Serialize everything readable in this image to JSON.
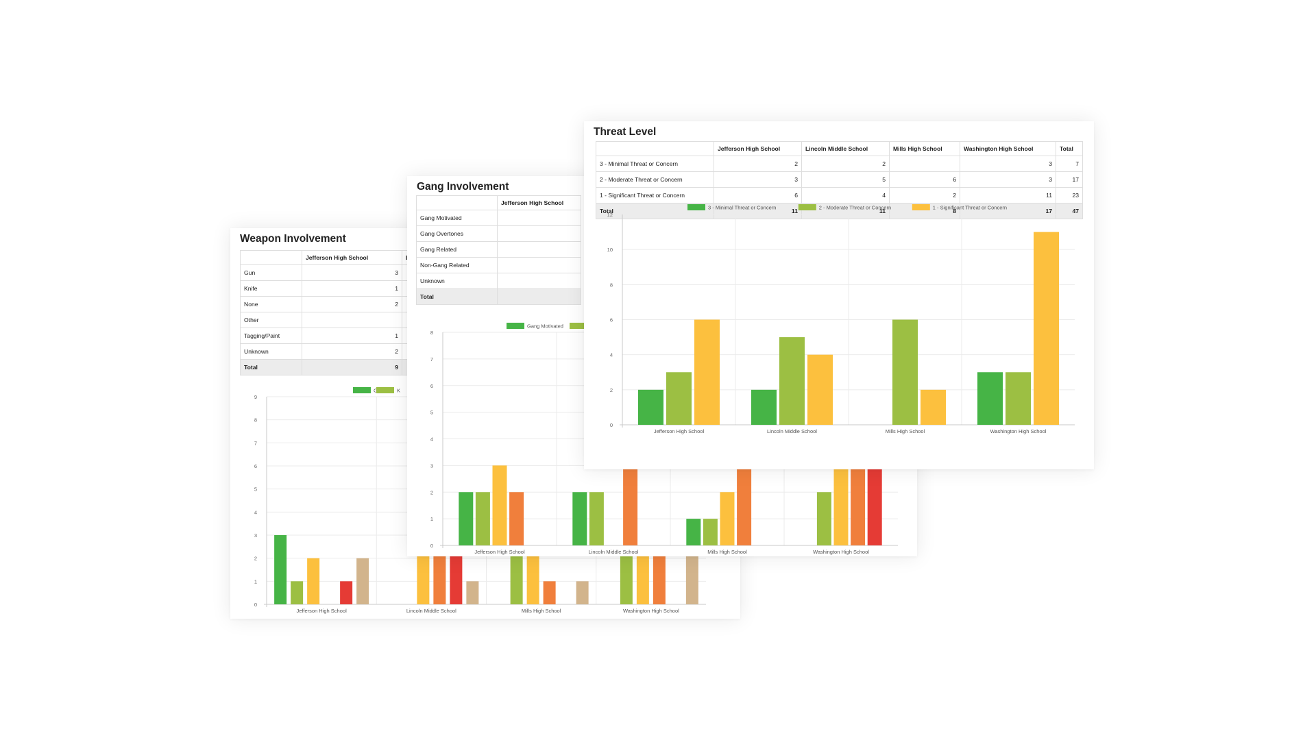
{
  "colors": {
    "green": "#46b446",
    "lightgreen": "#9cbf43",
    "yellow": "#fcc03e",
    "orange": "#f07f3c",
    "red": "#e53b35",
    "tan": "#d2b48c"
  },
  "weapon": {
    "title": "Weapon Involvement",
    "columns": [
      "",
      "Jefferson High School",
      "L"
    ],
    "rows": [
      {
        "label": "Gun",
        "cells": [
          "3",
          ""
        ]
      },
      {
        "label": "Knife",
        "cells": [
          "1",
          ""
        ]
      },
      {
        "label": "None",
        "cells": [
          "2",
          ""
        ]
      },
      {
        "label": "Other",
        "cells": [
          "",
          ""
        ]
      },
      {
        "label": "Tagging/Paint",
        "cells": [
          "1",
          ""
        ]
      },
      {
        "label": "Unknown",
        "cells": [
          "2",
          ""
        ]
      },
      {
        "label": "Total",
        "cells": [
          "9",
          ""
        ],
        "total": true
      }
    ]
  },
  "gang": {
    "title": "Gang Involvement",
    "columns": [
      "",
      "Jefferson High School"
    ],
    "rows": [
      {
        "label": "Gang Motivated",
        "cells": [
          ""
        ]
      },
      {
        "label": "Gang Overtones",
        "cells": [
          ""
        ]
      },
      {
        "label": "Gang Related",
        "cells": [
          ""
        ]
      },
      {
        "label": "Non-Gang Related",
        "cells": [
          ""
        ]
      },
      {
        "label": "Unknown",
        "cells": [
          ""
        ]
      },
      {
        "label": "Total",
        "cells": [
          ""
        ],
        "total": true
      }
    ]
  },
  "threat": {
    "title": "Threat Level",
    "columns": [
      "",
      "Jefferson High School",
      "Lincoln Middle School",
      "Mills High School",
      "Washington High School",
      "Total"
    ],
    "rows": [
      {
        "label": "3 - Minimal Threat or Concern",
        "cells": [
          "2",
          "2",
          "",
          "3",
          "7"
        ]
      },
      {
        "label": "2 - Moderate Threat or Concern",
        "cells": [
          "3",
          "5",
          "6",
          "3",
          "17"
        ]
      },
      {
        "label": "1 - Significant Threat or Concern",
        "cells": [
          "6",
          "4",
          "2",
          "11",
          "23"
        ]
      },
      {
        "label": "Total",
        "cells": [
          "11",
          "11",
          "8",
          "17",
          "47"
        ],
        "total": true
      }
    ]
  },
  "chart_data": [
    {
      "id": "weapon",
      "type": "bar",
      "title": "Weapon Involvement",
      "categories": [
        "Jefferson High School",
        "Lincoln Middle School",
        "Mills High School",
        "Washington High School"
      ],
      "series": [
        {
          "name": "Gun",
          "color": "green",
          "values": [
            3,
            0,
            0,
            0
          ]
        },
        {
          "name": "Knife",
          "color": "lightgreen",
          "values": [
            1,
            0,
            3,
            3
          ]
        },
        {
          "name": "None",
          "color": "yellow",
          "values": [
            2,
            3,
            3,
            3
          ]
        },
        {
          "name": "Other",
          "color": "orange",
          "values": [
            0,
            3,
            1,
            3
          ]
        },
        {
          "name": "Tagging/Paint",
          "color": "red",
          "values": [
            1,
            3,
            0,
            0
          ]
        },
        {
          "name": "Unknown",
          "color": "tan",
          "values": [
            2,
            1,
            1,
            3
          ]
        }
      ],
      "legend": [
        "Gun",
        "K"
      ],
      "ylim": [
        0,
        9
      ],
      "yticks": [
        0,
        1,
        2,
        3,
        4,
        5,
        6,
        7,
        8,
        9
      ]
    },
    {
      "id": "gang",
      "type": "bar",
      "title": "Gang Involvement",
      "categories": [
        "Jefferson High School",
        "Lincoln Middle School",
        "Mills High School",
        "Washington High School"
      ],
      "series": [
        {
          "name": "Gang Motivated",
          "color": "green",
          "values": [
            2,
            2,
            1,
            0
          ]
        },
        {
          "name": "Gang Overtones",
          "color": "lightgreen",
          "values": [
            2,
            2,
            1,
            2
          ]
        },
        {
          "name": "Gang Related",
          "color": "yellow",
          "values": [
            3,
            0,
            2,
            3
          ]
        },
        {
          "name": "Non-Gang Related",
          "color": "orange",
          "values": [
            2,
            3,
            3,
            3
          ]
        },
        {
          "name": "Unknown",
          "color": "red",
          "values": [
            0,
            0,
            0,
            3
          ]
        }
      ],
      "legend": [
        "Gang Motivated",
        ""
      ],
      "ylim": [
        0,
        8
      ],
      "yticks": [
        0,
        1,
        2,
        3,
        4,
        5,
        6,
        7,
        8
      ]
    },
    {
      "id": "threat",
      "type": "bar",
      "title": "Threat Level",
      "categories": [
        "Jefferson High School",
        "Lincoln Middle School",
        "Mills High School",
        "Washington High School"
      ],
      "series": [
        {
          "name": "3 - Minimal Threat or Concern",
          "color": "green",
          "values": [
            2,
            2,
            0,
            3
          ]
        },
        {
          "name": "2 - Moderate Threat or Concern",
          "color": "lightgreen",
          "values": [
            3,
            5,
            6,
            3
          ]
        },
        {
          "name": "1 - Significant Threat or Concern",
          "color": "yellow",
          "values": [
            6,
            4,
            2,
            11
          ]
        }
      ],
      "legend": [
        "3 - Minimal Threat or Concern",
        "2 - Moderate Threat or Concern",
        "1 - Significant Threat or Concern"
      ],
      "ylim": [
        0,
        12
      ],
      "yticks": [
        0,
        2,
        4,
        6,
        8,
        10,
        12
      ]
    }
  ]
}
